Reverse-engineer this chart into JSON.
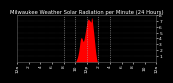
{
  "title": "Milwaukee Weather Solar Radiation per Minute (24 Hours)",
  "bg_color": "#000000",
  "plot_bg_color": "#000000",
  "bar_color": "#ff0000",
  "grid_color": "#404040",
  "text_color": "#ffffff",
  "ylim": [
    0,
    800
  ],
  "xlim": [
    0,
    1440
  ],
  "solar_data": [
    0,
    0,
    0,
    0,
    0,
    0,
    0,
    0,
    0,
    0,
    0,
    0,
    0,
    0,
    0,
    0,
    0,
    0,
    0,
    0,
    0,
    0,
    0,
    0,
    0,
    0,
    0,
    0,
    0,
    0,
    0,
    0,
    0,
    0,
    0,
    0,
    0,
    0,
    0,
    0,
    0,
    0,
    0,
    0,
    0,
    0,
    0,
    0,
    0,
    0,
    0,
    0,
    0,
    0,
    0,
    0,
    0,
    0,
    0,
    0,
    0,
    0,
    0,
    0,
    0,
    0,
    0,
    0,
    0,
    0,
    0,
    0,
    0,
    0,
    0,
    0,
    0,
    0,
    0,
    0,
    0,
    0,
    0,
    0,
    0,
    0,
    0,
    0,
    0,
    0,
    0,
    0,
    0,
    0,
    0,
    0,
    0,
    0,
    0,
    0,
    0,
    0,
    0,
    0,
    0,
    0,
    0,
    0,
    0,
    0,
    0,
    0,
    0,
    0,
    0,
    0,
    0,
    0,
    0,
    0,
    0,
    0,
    0,
    0,
    0,
    0,
    0,
    0,
    0,
    0,
    0,
    0,
    0,
    0,
    0,
    0,
    0,
    0,
    0,
    0,
    0,
    0,
    0,
    0,
    0,
    0,
    0,
    0,
    0,
    0,
    0,
    0,
    0,
    0,
    0,
    0,
    0,
    0,
    0,
    0,
    0,
    0,
    0,
    0,
    0,
    0,
    0,
    0,
    0,
    0,
    0,
    0,
    0,
    0,
    0,
    0,
    0,
    0,
    0,
    0,
    0,
    0,
    0,
    0,
    0,
    0,
    0,
    0,
    0,
    0,
    0,
    0,
    0,
    0,
    0,
    0,
    0,
    0,
    0,
    0,
    0,
    0,
    0,
    0,
    0,
    0,
    0,
    0,
    0,
    0,
    0,
    0,
    0,
    0,
    0,
    0,
    0,
    0,
    0,
    0,
    0,
    0,
    0,
    0,
    0,
    0,
    0,
    0,
    0,
    0,
    0,
    0,
    0,
    0,
    0,
    0,
    0,
    0,
    0,
    0,
    0,
    0,
    0,
    0,
    0,
    0,
    0,
    0,
    0,
    0,
    0,
    0,
    0,
    0,
    0,
    0,
    0,
    0,
    0,
    0,
    0,
    0,
    0,
    0,
    0,
    0,
    0,
    0,
    0,
    0,
    0,
    0,
    0,
    0,
    0,
    0,
    0,
    0,
    0,
    0,
    0,
    0,
    0,
    0,
    0,
    0,
    0,
    0,
    0,
    0,
    0,
    0,
    0,
    0,
    0,
    0,
    0,
    0,
    0,
    0,
    0,
    0,
    0,
    0,
    0,
    0,
    0,
    0,
    0,
    0,
    0,
    0,
    0,
    0,
    0,
    0,
    0,
    0,
    0,
    0,
    0,
    0,
    0,
    0,
    0,
    0,
    0,
    0,
    0,
    0,
    0,
    0,
    0,
    0,
    0,
    0,
    0,
    0,
    0,
    0,
    0,
    0,
    0,
    0,
    0,
    0,
    0,
    0,
    0,
    0,
    0,
    0,
    0,
    0,
    0,
    0,
    0,
    0,
    0,
    0,
    0,
    0,
    0,
    0,
    0,
    0,
    0,
    0,
    0,
    0,
    0,
    0,
    0,
    0,
    0,
    0,
    0,
    0,
    0,
    0,
    0,
    0,
    0,
    0,
    0,
    0,
    0,
    0,
    0,
    0,
    0,
    0,
    0,
    0,
    0,
    0,
    0,
    0,
    0,
    0,
    0,
    0,
    0,
    0,
    0,
    0,
    0,
    0,
    0,
    0,
    0,
    0,
    0,
    0,
    0,
    0,
    0,
    0,
    0,
    0,
    0,
    0,
    0,
    0,
    0,
    0,
    0,
    0,
    0,
    0,
    0,
    0,
    0,
    0,
    0,
    0,
    0,
    0,
    0,
    0,
    0,
    0,
    0,
    0,
    0,
    0,
    0,
    0,
    0,
    0,
    0,
    0,
    0,
    0,
    0,
    0,
    0,
    0,
    0,
    0,
    0,
    0,
    0,
    0,
    0,
    0,
    0,
    0,
    0,
    0,
    0,
    0,
    0,
    0,
    0,
    0,
    0,
    0,
    0,
    0,
    0,
    0,
    0,
    0,
    0,
    0,
    0,
    0,
    0,
    0,
    0,
    0,
    0,
    0,
    0,
    0,
    0,
    0,
    0,
    0,
    0,
    0,
    0,
    0,
    0,
    0,
    0,
    0,
    0,
    0,
    0,
    0,
    0,
    0,
    0,
    0,
    0,
    0,
    0,
    0,
    0,
    0,
    0,
    0,
    0,
    0,
    0,
    0,
    0,
    0,
    0,
    0,
    0,
    0,
    0,
    0,
    0,
    0,
    0,
    0,
    0,
    0,
    0,
    0,
    0,
    0,
    0,
    0,
    0,
    0,
    0,
    0,
    0,
    0,
    0,
    0,
    0,
    0,
    0,
    0,
    0,
    0,
    0,
    0,
    0,
    0,
    0,
    0,
    0,
    0,
    0,
    0,
    0,
    0,
    0,
    0,
    0,
    0,
    0,
    0,
    0,
    0,
    0,
    0,
    0,
    0,
    0,
    0,
    0,
    0,
    0,
    0,
    0,
    0,
    0,
    0,
    0,
    0,
    0,
    0,
    2,
    3,
    5,
    6,
    8,
    10,
    12,
    15,
    18,
    22,
    25,
    28,
    32,
    36,
    40,
    44,
    48,
    52,
    56,
    60,
    65,
    70,
    75,
    80,
    86,
    92,
    98,
    105,
    112,
    120,
    128,
    136,
    144,
    152,
    160,
    170,
    180,
    190,
    200,
    212,
    224,
    236,
    248,
    260,
    272,
    285,
    298,
    312,
    325,
    338,
    350,
    360,
    370,
    380,
    388,
    395,
    400,
    405,
    408,
    410,
    412,
    413,
    414,
    415,
    415,
    414,
    412,
    410,
    408,
    405,
    402,
    398,
    394,
    390,
    386,
    382,
    378,
    374,
    370,
    366,
    362,
    358,
    354,
    350,
    346,
    350,
    355,
    360,
    366,
    372,
    378,
    385,
    392,
    400,
    408,
    416,
    425,
    434,
    443,
    452,
    462,
    472,
    482,
    492,
    502,
    512,
    522,
    532,
    542,
    552,
    562,
    572,
    582,
    592,
    602,
    612,
    622,
    632,
    642,
    652,
    662,
    672,
    680,
    688,
    694,
    700,
    705,
    710,
    714,
    718,
    721,
    724,
    726,
    728,
    729,
    730,
    730,
    729,
    728,
    726,
    724,
    722,
    720,
    718,
    716,
    714,
    712,
    710,
    708,
    706,
    704,
    702,
    700,
    698,
    696,
    694,
    692,
    690,
    688,
    686,
    684,
    682,
    680,
    678,
    676,
    700,
    720,
    735,
    745,
    750,
    752,
    750,
    748,
    744,
    738,
    730,
    720,
    708,
    695,
    680,
    665,
    650,
    635,
    620,
    605,
    590,
    575,
    560,
    545,
    530,
    514,
    498,
    482,
    466,
    450,
    434,
    418,
    402,
    386,
    370,
    354,
    338,
    322,
    306,
    290,
    274,
    258,
    242,
    226,
    210,
    195,
    180,
    166,
    152,
    139,
    127,
    115,
    104,
    93,
    83,
    73,
    64,
    55,
    47,
    39,
    32,
    25,
    19,
    14,
    9,
    5,
    2,
    0,
    0,
    0,
    0,
    0,
    0,
    0,
    0,
    0,
    0,
    0,
    0,
    0,
    0,
    0,
    0,
    0,
    0,
    0,
    0,
    0,
    0,
    0,
    0,
    0,
    0,
    0,
    0,
    0,
    0,
    0,
    0,
    0,
    0,
    0,
    0,
    0,
    0,
    0,
    0,
    0,
    0,
    0,
    0,
    0,
    0,
    0,
    0,
    0,
    0,
    0,
    0,
    0,
    0,
    0,
    0,
    0,
    0,
    0,
    0,
    0,
    0,
    0,
    0,
    0,
    0,
    0,
    0,
    0,
    0,
    0,
    0,
    0,
    0,
    0,
    0,
    0,
    0,
    0,
    0,
    0,
    0,
    0,
    0,
    0,
    0,
    0,
    0,
    0,
    0,
    0,
    0,
    0,
    0,
    0,
    0,
    0,
    0,
    0,
    0,
    0,
    0,
    0,
    0,
    0,
    0,
    0,
    0,
    0,
    0,
    0,
    0,
    0,
    0,
    0,
    0,
    0,
    0,
    0,
    0,
    0,
    0,
    0,
    0,
    0,
    0,
    0,
    0,
    0,
    0,
    0,
    0,
    0,
    0,
    0,
    0,
    0,
    0,
    0,
    0,
    0,
    0,
    0,
    0,
    0,
    0,
    0,
    0,
    0,
    0,
    0,
    0,
    0,
    0,
    0,
    0,
    0,
    0,
    0,
    0,
    0,
    0,
    0,
    0,
    0,
    0,
    0,
    0,
    0,
    0,
    0,
    0,
    0,
    0,
    0,
    0,
    0,
    0,
    0,
    0,
    0,
    0,
    0,
    0,
    0,
    0,
    0,
    0,
    0,
    0,
    0,
    0,
    0,
    0,
    0,
    0,
    0,
    0,
    0,
    0,
    0,
    0,
    0,
    0,
    0,
    0,
    0,
    0,
    0,
    0,
    0,
    0,
    0,
    0,
    0,
    0,
    0,
    0,
    0,
    0,
    0,
    0,
    0,
    0,
    0,
    0,
    0,
    0,
    0,
    0,
    0,
    0,
    0,
    0,
    0,
    0,
    0,
    0,
    0,
    0,
    0,
    0,
    0,
    0,
    0,
    0,
    0,
    0,
    0,
    0,
    0,
    0,
    0,
    0,
    0,
    0,
    0,
    0,
    0,
    0,
    0,
    0,
    0,
    0,
    0,
    0,
    0,
    0,
    0,
    0,
    0,
    0,
    0,
    0,
    0,
    0,
    0,
    0,
    0,
    0,
    0,
    0,
    0,
    0,
    0,
    0,
    0,
    0,
    0,
    0,
    0,
    0,
    0,
    0,
    0,
    0,
    0,
    0,
    0,
    0,
    0,
    0,
    0,
    0,
    0,
    0,
    0,
    0,
    0,
    0,
    0,
    0,
    0,
    0,
    0,
    0,
    0,
    0,
    0,
    0,
    0,
    0,
    0,
    0,
    0,
    0,
    0,
    0,
    0,
    0,
    0,
    0,
    0,
    0,
    0,
    0,
    0,
    0,
    0,
    0,
    0,
    0,
    0,
    0,
    0,
    0,
    0,
    0,
    0,
    0,
    0,
    0,
    0,
    0,
    0,
    0,
    0,
    0,
    0,
    0,
    0,
    0,
    0,
    0,
    0,
    0,
    0,
    0,
    0,
    0,
    0,
    0,
    0,
    0,
    0,
    0,
    0,
    0,
    0,
    0,
    0,
    0,
    0,
    0,
    0,
    0,
    0,
    0,
    0,
    0,
    0,
    0,
    0,
    0,
    0,
    0,
    0,
    0,
    0,
    0,
    0,
    0,
    0,
    0,
    0,
    0,
    0,
    0,
    0,
    0,
    0,
    0,
    0,
    0,
    0,
    0,
    0,
    0,
    0,
    0,
    0,
    0,
    0,
    0,
    0,
    0,
    0,
    0,
    0,
    0,
    0,
    0,
    0,
    0,
    0,
    0,
    0,
    0,
    0,
    0,
    0,
    0,
    0,
    0,
    0,
    0,
    0,
    0,
    0,
    0,
    0,
    0,
    0,
    0,
    0,
    0,
    0,
    0,
    0,
    0,
    0,
    0,
    0,
    0,
    0,
    0,
    0,
    0,
    0,
    0,
    0,
    0,
    0,
    0,
    0,
    0,
    0,
    0,
    0,
    0,
    0,
    0,
    0,
    0,
    0,
    0,
    0,
    0,
    0,
    0,
    0,
    0,
    0,
    0,
    0,
    0,
    0,
    0,
    0,
    0,
    0,
    0,
    0,
    0,
    0,
    0,
    0,
    0,
    0,
    0,
    0,
    0,
    0,
    0,
    0,
    0,
    0,
    0,
    0,
    0,
    0,
    0,
    0,
    0,
    0,
    0,
    0,
    0,
    0,
    0,
    0,
    0,
    0,
    0,
    0,
    0,
    0,
    0,
    0,
    0,
    0,
    0,
    0,
    0,
    0,
    0,
    0,
    0,
    0,
    0,
    0,
    0,
    0,
    0,
    0,
    0,
    0,
    0,
    0,
    0,
    0,
    0,
    0,
    0,
    0,
    0,
    0,
    0,
    0,
    0,
    0,
    0,
    0,
    0,
    0,
    0,
    0,
    0,
    0,
    0,
    0,
    0,
    0,
    0,
    0,
    0,
    0,
    0
  ],
  "xtick_positions": [
    0,
    120,
    240,
    360,
    480,
    600,
    720,
    840,
    960,
    1080,
    1200,
    1320,
    1440
  ],
  "xtick_labels": [
    "12a",
    "2",
    "4",
    "6",
    "8",
    "10",
    "12p",
    "2",
    "4",
    "6",
    "8",
    "10",
    "12a"
  ],
  "ytick_positions": [
    100,
    200,
    300,
    400,
    500,
    600,
    700,
    800
  ],
  "ytick_labels": [
    "1",
    "2",
    "3",
    "4",
    "5",
    "6",
    "7",
    "8"
  ],
  "title_text": "Milwaukee Weather Solar Radiation per Minute (24 Hours)",
  "title_fontsize": 3.8,
  "tick_fontsize": 3.2,
  "dashed_vlines": [
    480,
    600,
    720,
    840,
    960
  ]
}
